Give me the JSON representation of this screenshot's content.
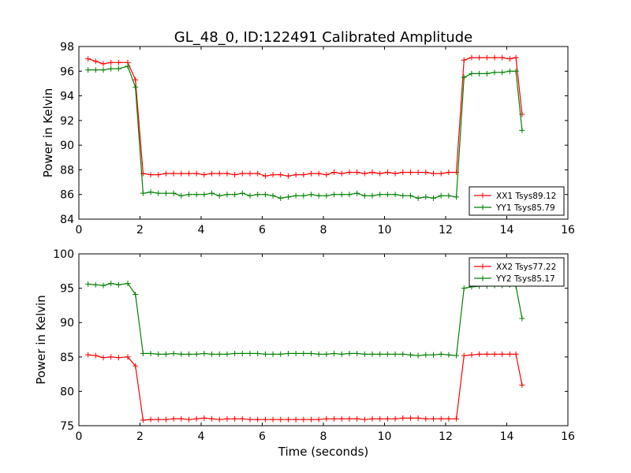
{
  "title": "GL_48_0, ID:122491 Calibrated Amplitude",
  "xlabel": "Time (seconds)",
  "chart_data": [
    {
      "type": "line",
      "title": "GL_48_0, ID:122491 Calibrated Amplitude",
      "xlabel": "",
      "ylabel": "Power in Kelvin",
      "xlim": [
        0,
        16
      ],
      "ylim": [
        84,
        98
      ],
      "xticks": [
        0,
        2,
        4,
        6,
        8,
        10,
        12,
        14,
        16
      ],
      "yticks": [
        84,
        86,
        88,
        90,
        92,
        94,
        96,
        98
      ],
      "grid": false,
      "legend_position": "lower-right",
      "x": [
        0.3,
        0.55,
        0.8,
        1.05,
        1.3,
        1.6,
        1.85,
        2.1,
        2.35,
        2.6,
        2.85,
        3.1,
        3.35,
        3.6,
        3.85,
        4.1,
        4.35,
        4.6,
        4.85,
        5.1,
        5.35,
        5.6,
        5.85,
        6.1,
        6.35,
        6.6,
        6.85,
        7.1,
        7.35,
        7.6,
        7.85,
        8.1,
        8.35,
        8.6,
        8.85,
        9.1,
        9.35,
        9.6,
        9.85,
        10.1,
        10.35,
        10.6,
        10.85,
        11.1,
        11.35,
        11.6,
        11.85,
        12.1,
        12.35,
        12.6,
        12.85,
        13.1,
        13.35,
        13.6,
        13.85,
        14.1,
        14.3,
        14.5
      ],
      "series": [
        {
          "name": "XX1 Tsys89.12",
          "color": "#ff0000",
          "values": [
            97.0,
            96.8,
            96.6,
            96.7,
            96.7,
            96.7,
            95.3,
            87.7,
            87.6,
            87.6,
            87.7,
            87.7,
            87.7,
            87.7,
            87.7,
            87.6,
            87.7,
            87.7,
            87.7,
            87.6,
            87.7,
            87.7,
            87.7,
            87.5,
            87.6,
            87.6,
            87.5,
            87.6,
            87.6,
            87.7,
            87.7,
            87.6,
            87.8,
            87.7,
            87.8,
            87.8,
            87.7,
            87.8,
            87.7,
            87.8,
            87.7,
            87.8,
            87.8,
            87.8,
            87.8,
            87.7,
            87.7,
            87.8,
            87.8,
            96.9,
            97.1,
            97.1,
            97.1,
            97.1,
            97.1,
            97.0,
            97.1,
            92.5
          ]
        },
        {
          "name": "YY1 Tsys85.79",
          "color": "#008000",
          "values": [
            96.1,
            96.1,
            96.1,
            96.2,
            96.2,
            96.4,
            94.7,
            86.1,
            86.2,
            86.1,
            86.1,
            86.1,
            85.9,
            86.0,
            86.0,
            86.0,
            86.1,
            85.9,
            86.0,
            86.0,
            86.1,
            85.9,
            86.0,
            86.0,
            85.9,
            85.7,
            85.8,
            85.9,
            85.9,
            86.0,
            85.9,
            85.9,
            86.0,
            86.0,
            86.0,
            86.1,
            85.9,
            85.9,
            86.0,
            86.0,
            86.0,
            85.9,
            85.9,
            85.7,
            85.8,
            85.7,
            85.9,
            85.9,
            85.8,
            95.5,
            95.8,
            95.8,
            95.8,
            95.9,
            95.9,
            96.0,
            96.0,
            91.2
          ]
        }
      ]
    },
    {
      "type": "line",
      "title": "",
      "xlabel": "Time (seconds)",
      "ylabel": "Power in Kelvin",
      "xlim": [
        0,
        16
      ],
      "ylim": [
        75,
        100
      ],
      "xticks": [
        0,
        2,
        4,
        6,
        8,
        10,
        12,
        14,
        16
      ],
      "yticks": [
        75,
        80,
        85,
        90,
        95,
        100
      ],
      "grid": false,
      "legend_position": "upper-right",
      "x": [
        0.3,
        0.55,
        0.8,
        1.05,
        1.3,
        1.6,
        1.85,
        2.1,
        2.35,
        2.6,
        2.85,
        3.1,
        3.35,
        3.6,
        3.85,
        4.1,
        4.35,
        4.6,
        4.85,
        5.1,
        5.35,
        5.6,
        5.85,
        6.1,
        6.35,
        6.6,
        6.85,
        7.1,
        7.35,
        7.6,
        7.85,
        8.1,
        8.35,
        8.6,
        8.85,
        9.1,
        9.35,
        9.6,
        9.85,
        10.1,
        10.35,
        10.6,
        10.85,
        11.1,
        11.35,
        11.6,
        11.85,
        12.1,
        12.35,
        12.6,
        12.85,
        13.1,
        13.35,
        13.6,
        13.85,
        14.1,
        14.3,
        14.5
      ],
      "series": [
        {
          "name": "XX2 Tsys77.22",
          "color": "#ff0000",
          "values": [
            85.3,
            85.2,
            84.9,
            85.0,
            84.9,
            85.0,
            83.7,
            75.8,
            75.9,
            75.9,
            75.9,
            76.0,
            76.0,
            75.9,
            76.0,
            76.1,
            76.0,
            75.9,
            76.0,
            76.0,
            76.0,
            75.9,
            75.9,
            75.9,
            75.9,
            75.9,
            75.9,
            75.9,
            75.9,
            75.9,
            75.9,
            76.0,
            76.0,
            76.0,
            76.0,
            76.0,
            75.9,
            76.0,
            76.0,
            76.0,
            76.0,
            76.1,
            76.1,
            76.1,
            76.0,
            76.0,
            76.0,
            76.0,
            76.0,
            85.2,
            85.3,
            85.4,
            85.4,
            85.4,
            85.4,
            85.4,
            85.4,
            80.9
          ]
        },
        {
          "name": "YY2 Tsys85.17",
          "color": "#008000",
          "values": [
            95.6,
            95.5,
            95.4,
            95.7,
            95.5,
            95.7,
            94.1,
            85.5,
            85.5,
            85.4,
            85.4,
            85.5,
            85.4,
            85.4,
            85.4,
            85.5,
            85.4,
            85.4,
            85.4,
            85.5,
            85.5,
            85.5,
            85.5,
            85.4,
            85.4,
            85.4,
            85.5,
            85.5,
            85.5,
            85.5,
            85.4,
            85.4,
            85.5,
            85.4,
            85.5,
            85.5,
            85.4,
            85.4,
            85.4,
            85.4,
            85.4,
            85.4,
            85.3,
            85.2,
            85.3,
            85.3,
            85.4,
            85.3,
            85.2,
            95.0,
            95.2,
            95.3,
            95.3,
            95.4,
            95.4,
            95.5,
            95.3,
            90.6
          ]
        }
      ]
    }
  ]
}
